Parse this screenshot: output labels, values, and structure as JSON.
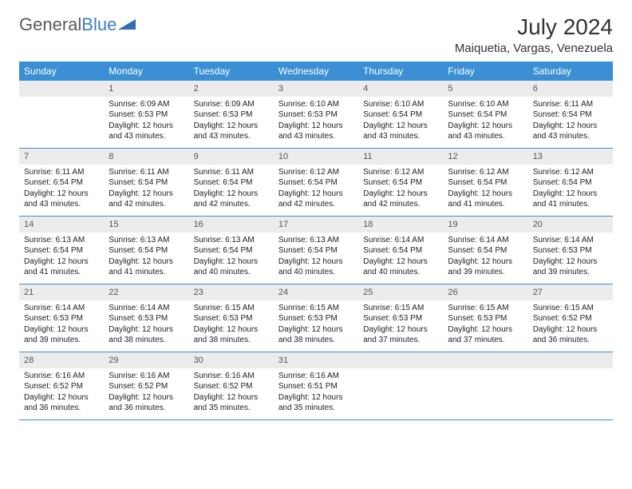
{
  "brand": {
    "part1": "General",
    "part2": "Blue"
  },
  "title": "July 2024",
  "location": "Maiquetia, Vargas, Venezuela",
  "colors": {
    "header_bg": "#3b8fd4",
    "daynum_bg": "#ececec",
    "border": "#3b8fd4",
    "text": "#222222",
    "title": "#333333"
  },
  "weekdays": [
    "Sunday",
    "Monday",
    "Tuesday",
    "Wednesday",
    "Thursday",
    "Friday",
    "Saturday"
  ],
  "weeks": [
    [
      {
        "n": "",
        "sr": "",
        "ss": "",
        "dl": ""
      },
      {
        "n": "1",
        "sr": "Sunrise: 6:09 AM",
        "ss": "Sunset: 6:53 PM",
        "dl": "Daylight: 12 hours and 43 minutes."
      },
      {
        "n": "2",
        "sr": "Sunrise: 6:09 AM",
        "ss": "Sunset: 6:53 PM",
        "dl": "Daylight: 12 hours and 43 minutes."
      },
      {
        "n": "3",
        "sr": "Sunrise: 6:10 AM",
        "ss": "Sunset: 6:53 PM",
        "dl": "Daylight: 12 hours and 43 minutes."
      },
      {
        "n": "4",
        "sr": "Sunrise: 6:10 AM",
        "ss": "Sunset: 6:54 PM",
        "dl": "Daylight: 12 hours and 43 minutes."
      },
      {
        "n": "5",
        "sr": "Sunrise: 6:10 AM",
        "ss": "Sunset: 6:54 PM",
        "dl": "Daylight: 12 hours and 43 minutes."
      },
      {
        "n": "6",
        "sr": "Sunrise: 6:11 AM",
        "ss": "Sunset: 6:54 PM",
        "dl": "Daylight: 12 hours and 43 minutes."
      }
    ],
    [
      {
        "n": "7",
        "sr": "Sunrise: 6:11 AM",
        "ss": "Sunset: 6:54 PM",
        "dl": "Daylight: 12 hours and 43 minutes."
      },
      {
        "n": "8",
        "sr": "Sunrise: 6:11 AM",
        "ss": "Sunset: 6:54 PM",
        "dl": "Daylight: 12 hours and 42 minutes."
      },
      {
        "n": "9",
        "sr": "Sunrise: 6:11 AM",
        "ss": "Sunset: 6:54 PM",
        "dl": "Daylight: 12 hours and 42 minutes."
      },
      {
        "n": "10",
        "sr": "Sunrise: 6:12 AM",
        "ss": "Sunset: 6:54 PM",
        "dl": "Daylight: 12 hours and 42 minutes."
      },
      {
        "n": "11",
        "sr": "Sunrise: 6:12 AM",
        "ss": "Sunset: 6:54 PM",
        "dl": "Daylight: 12 hours and 42 minutes."
      },
      {
        "n": "12",
        "sr": "Sunrise: 6:12 AM",
        "ss": "Sunset: 6:54 PM",
        "dl": "Daylight: 12 hours and 41 minutes."
      },
      {
        "n": "13",
        "sr": "Sunrise: 6:12 AM",
        "ss": "Sunset: 6:54 PM",
        "dl": "Daylight: 12 hours and 41 minutes."
      }
    ],
    [
      {
        "n": "14",
        "sr": "Sunrise: 6:13 AM",
        "ss": "Sunset: 6:54 PM",
        "dl": "Daylight: 12 hours and 41 minutes."
      },
      {
        "n": "15",
        "sr": "Sunrise: 6:13 AM",
        "ss": "Sunset: 6:54 PM",
        "dl": "Daylight: 12 hours and 41 minutes."
      },
      {
        "n": "16",
        "sr": "Sunrise: 6:13 AM",
        "ss": "Sunset: 6:54 PM",
        "dl": "Daylight: 12 hours and 40 minutes."
      },
      {
        "n": "17",
        "sr": "Sunrise: 6:13 AM",
        "ss": "Sunset: 6:54 PM",
        "dl": "Daylight: 12 hours and 40 minutes."
      },
      {
        "n": "18",
        "sr": "Sunrise: 6:14 AM",
        "ss": "Sunset: 6:54 PM",
        "dl": "Daylight: 12 hours and 40 minutes."
      },
      {
        "n": "19",
        "sr": "Sunrise: 6:14 AM",
        "ss": "Sunset: 6:54 PM",
        "dl": "Daylight: 12 hours and 39 minutes."
      },
      {
        "n": "20",
        "sr": "Sunrise: 6:14 AM",
        "ss": "Sunset: 6:53 PM",
        "dl": "Daylight: 12 hours and 39 minutes."
      }
    ],
    [
      {
        "n": "21",
        "sr": "Sunrise: 6:14 AM",
        "ss": "Sunset: 6:53 PM",
        "dl": "Daylight: 12 hours and 39 minutes."
      },
      {
        "n": "22",
        "sr": "Sunrise: 6:14 AM",
        "ss": "Sunset: 6:53 PM",
        "dl": "Daylight: 12 hours and 38 minutes."
      },
      {
        "n": "23",
        "sr": "Sunrise: 6:15 AM",
        "ss": "Sunset: 6:53 PM",
        "dl": "Daylight: 12 hours and 38 minutes."
      },
      {
        "n": "24",
        "sr": "Sunrise: 6:15 AM",
        "ss": "Sunset: 6:53 PM",
        "dl": "Daylight: 12 hours and 38 minutes."
      },
      {
        "n": "25",
        "sr": "Sunrise: 6:15 AM",
        "ss": "Sunset: 6:53 PM",
        "dl": "Daylight: 12 hours and 37 minutes."
      },
      {
        "n": "26",
        "sr": "Sunrise: 6:15 AM",
        "ss": "Sunset: 6:53 PM",
        "dl": "Daylight: 12 hours and 37 minutes."
      },
      {
        "n": "27",
        "sr": "Sunrise: 6:15 AM",
        "ss": "Sunset: 6:52 PM",
        "dl": "Daylight: 12 hours and 36 minutes."
      }
    ],
    [
      {
        "n": "28",
        "sr": "Sunrise: 6:16 AM",
        "ss": "Sunset: 6:52 PM",
        "dl": "Daylight: 12 hours and 36 minutes."
      },
      {
        "n": "29",
        "sr": "Sunrise: 6:16 AM",
        "ss": "Sunset: 6:52 PM",
        "dl": "Daylight: 12 hours and 36 minutes."
      },
      {
        "n": "30",
        "sr": "Sunrise: 6:16 AM",
        "ss": "Sunset: 6:52 PM",
        "dl": "Daylight: 12 hours and 35 minutes."
      },
      {
        "n": "31",
        "sr": "Sunrise: 6:16 AM",
        "ss": "Sunset: 6:51 PM",
        "dl": "Daylight: 12 hours and 35 minutes."
      },
      {
        "n": "",
        "sr": "",
        "ss": "",
        "dl": ""
      },
      {
        "n": "",
        "sr": "",
        "ss": "",
        "dl": ""
      },
      {
        "n": "",
        "sr": "",
        "ss": "",
        "dl": ""
      }
    ]
  ]
}
